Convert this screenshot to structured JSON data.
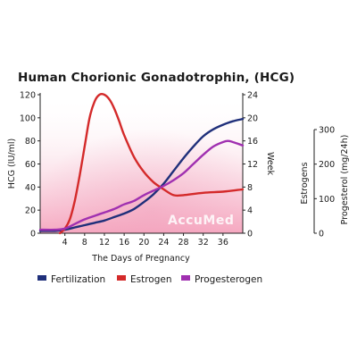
{
  "chart_data": {
    "type": "line",
    "title": "Human Chorionic Gonadotrophin, (HCG)",
    "xlabel": "The Days of Pregnancy",
    "x_ticks": [
      4,
      8,
      12,
      16,
      20,
      24,
      28,
      32,
      36
    ],
    "xlim": [
      -1,
      40
    ],
    "left_axis": {
      "label": "HCG (IU/ml)",
      "ticks": [
        0,
        20,
        40,
        60,
        80,
        100,
        120
      ],
      "ylim": [
        0,
        120
      ]
    },
    "week_axis": {
      "label": "Week",
      "ticks": [
        0,
        4,
        8,
        12,
        16,
        20,
        24
      ],
      "ylim": [
        0,
        24
      ]
    },
    "right_axis": {
      "label_outer": "Progesterol (mg/24h)",
      "label_inner": "Estrogens",
      "ticks": [
        0,
        100,
        200,
        300
      ],
      "ylim": [
        0,
        300
      ]
    },
    "grid": false,
    "background": "pink gradient",
    "legend_position": "bottom",
    "series": [
      {
        "name": "Fertilization",
        "color": "#1f2f7a",
        "x": [
          -1,
          2,
          4,
          6,
          8,
          10,
          12,
          14,
          16,
          18,
          20,
          22,
          24,
          26,
          28,
          30,
          32,
          34,
          36,
          38,
          40
        ],
        "y": [
          2,
          2,
          3,
          5,
          7,
          9,
          11,
          14,
          17,
          21,
          27,
          34,
          43,
          54,
          65,
          75,
          84,
          90,
          94,
          97,
          99
        ]
      },
      {
        "name": "Estrogen",
        "color": "#d42a2a",
        "x": [
          3,
          4,
          5,
          6,
          7,
          8,
          9,
          10,
          11,
          12,
          13,
          14,
          15,
          16,
          18,
          20,
          22,
          24,
          26,
          28,
          32,
          36,
          40
        ],
        "y": [
          0,
          4,
          12,
          28,
          50,
          75,
          100,
          114,
          120,
          120,
          116,
          108,
          97,
          85,
          66,
          53,
          44,
          38,
          33,
          33,
          35,
          36,
          38
        ]
      },
      {
        "name": "Progesterogen",
        "color": "#a030b0",
        "x": [
          -1,
          2,
          4,
          6,
          8,
          10,
          12,
          14,
          16,
          18,
          20,
          22,
          24,
          26,
          28,
          30,
          32,
          34,
          36,
          37,
          38,
          40
        ],
        "y": [
          3,
          3,
          4,
          8,
          12,
          15,
          18,
          21,
          25,
          28,
          33,
          37,
          41,
          46,
          52,
          60,
          68,
          75,
          79,
          80,
          79,
          76
        ]
      }
    ]
  },
  "legend": {
    "items": [
      {
        "label": "Fertilization",
        "color": "#1f2f7a"
      },
      {
        "label": "Estrogen",
        "color": "#d42a2a"
      },
      {
        "label": "Progesterogen",
        "color": "#a030b0"
      }
    ]
  },
  "watermark": {
    "text": "AccuMed"
  }
}
